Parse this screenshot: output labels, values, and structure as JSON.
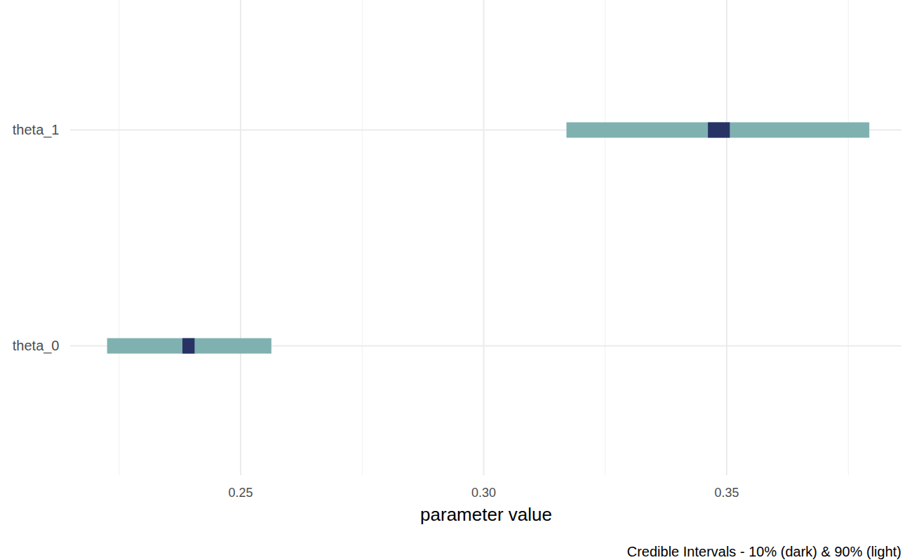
{
  "chart_data": {
    "type": "interval",
    "orientation": "horizontal",
    "caption": "Credible Intervals - 10% (dark) & 90% (light)",
    "x_label": "parameter value",
    "categories": [
      "theta_1",
      "theta_0"
    ],
    "series": [
      {
        "name": "90%",
        "color": "#7fb1b0",
        "low": [
          0.3171,
          0.2226
        ],
        "high": [
          0.3794,
          0.2564
        ]
      },
      {
        "name": "10%",
        "color": "#283265",
        "low": [
          0.3462,
          0.2381
        ],
        "high": [
          0.3507,
          0.2406
        ]
      }
    ],
    "xlim": [
      0.215,
      0.386
    ],
    "xticks": [
      0.25,
      {
        "value": 0.3,
        "label": "0.30"
      },
      0.35
    ],
    "grid": true
  }
}
